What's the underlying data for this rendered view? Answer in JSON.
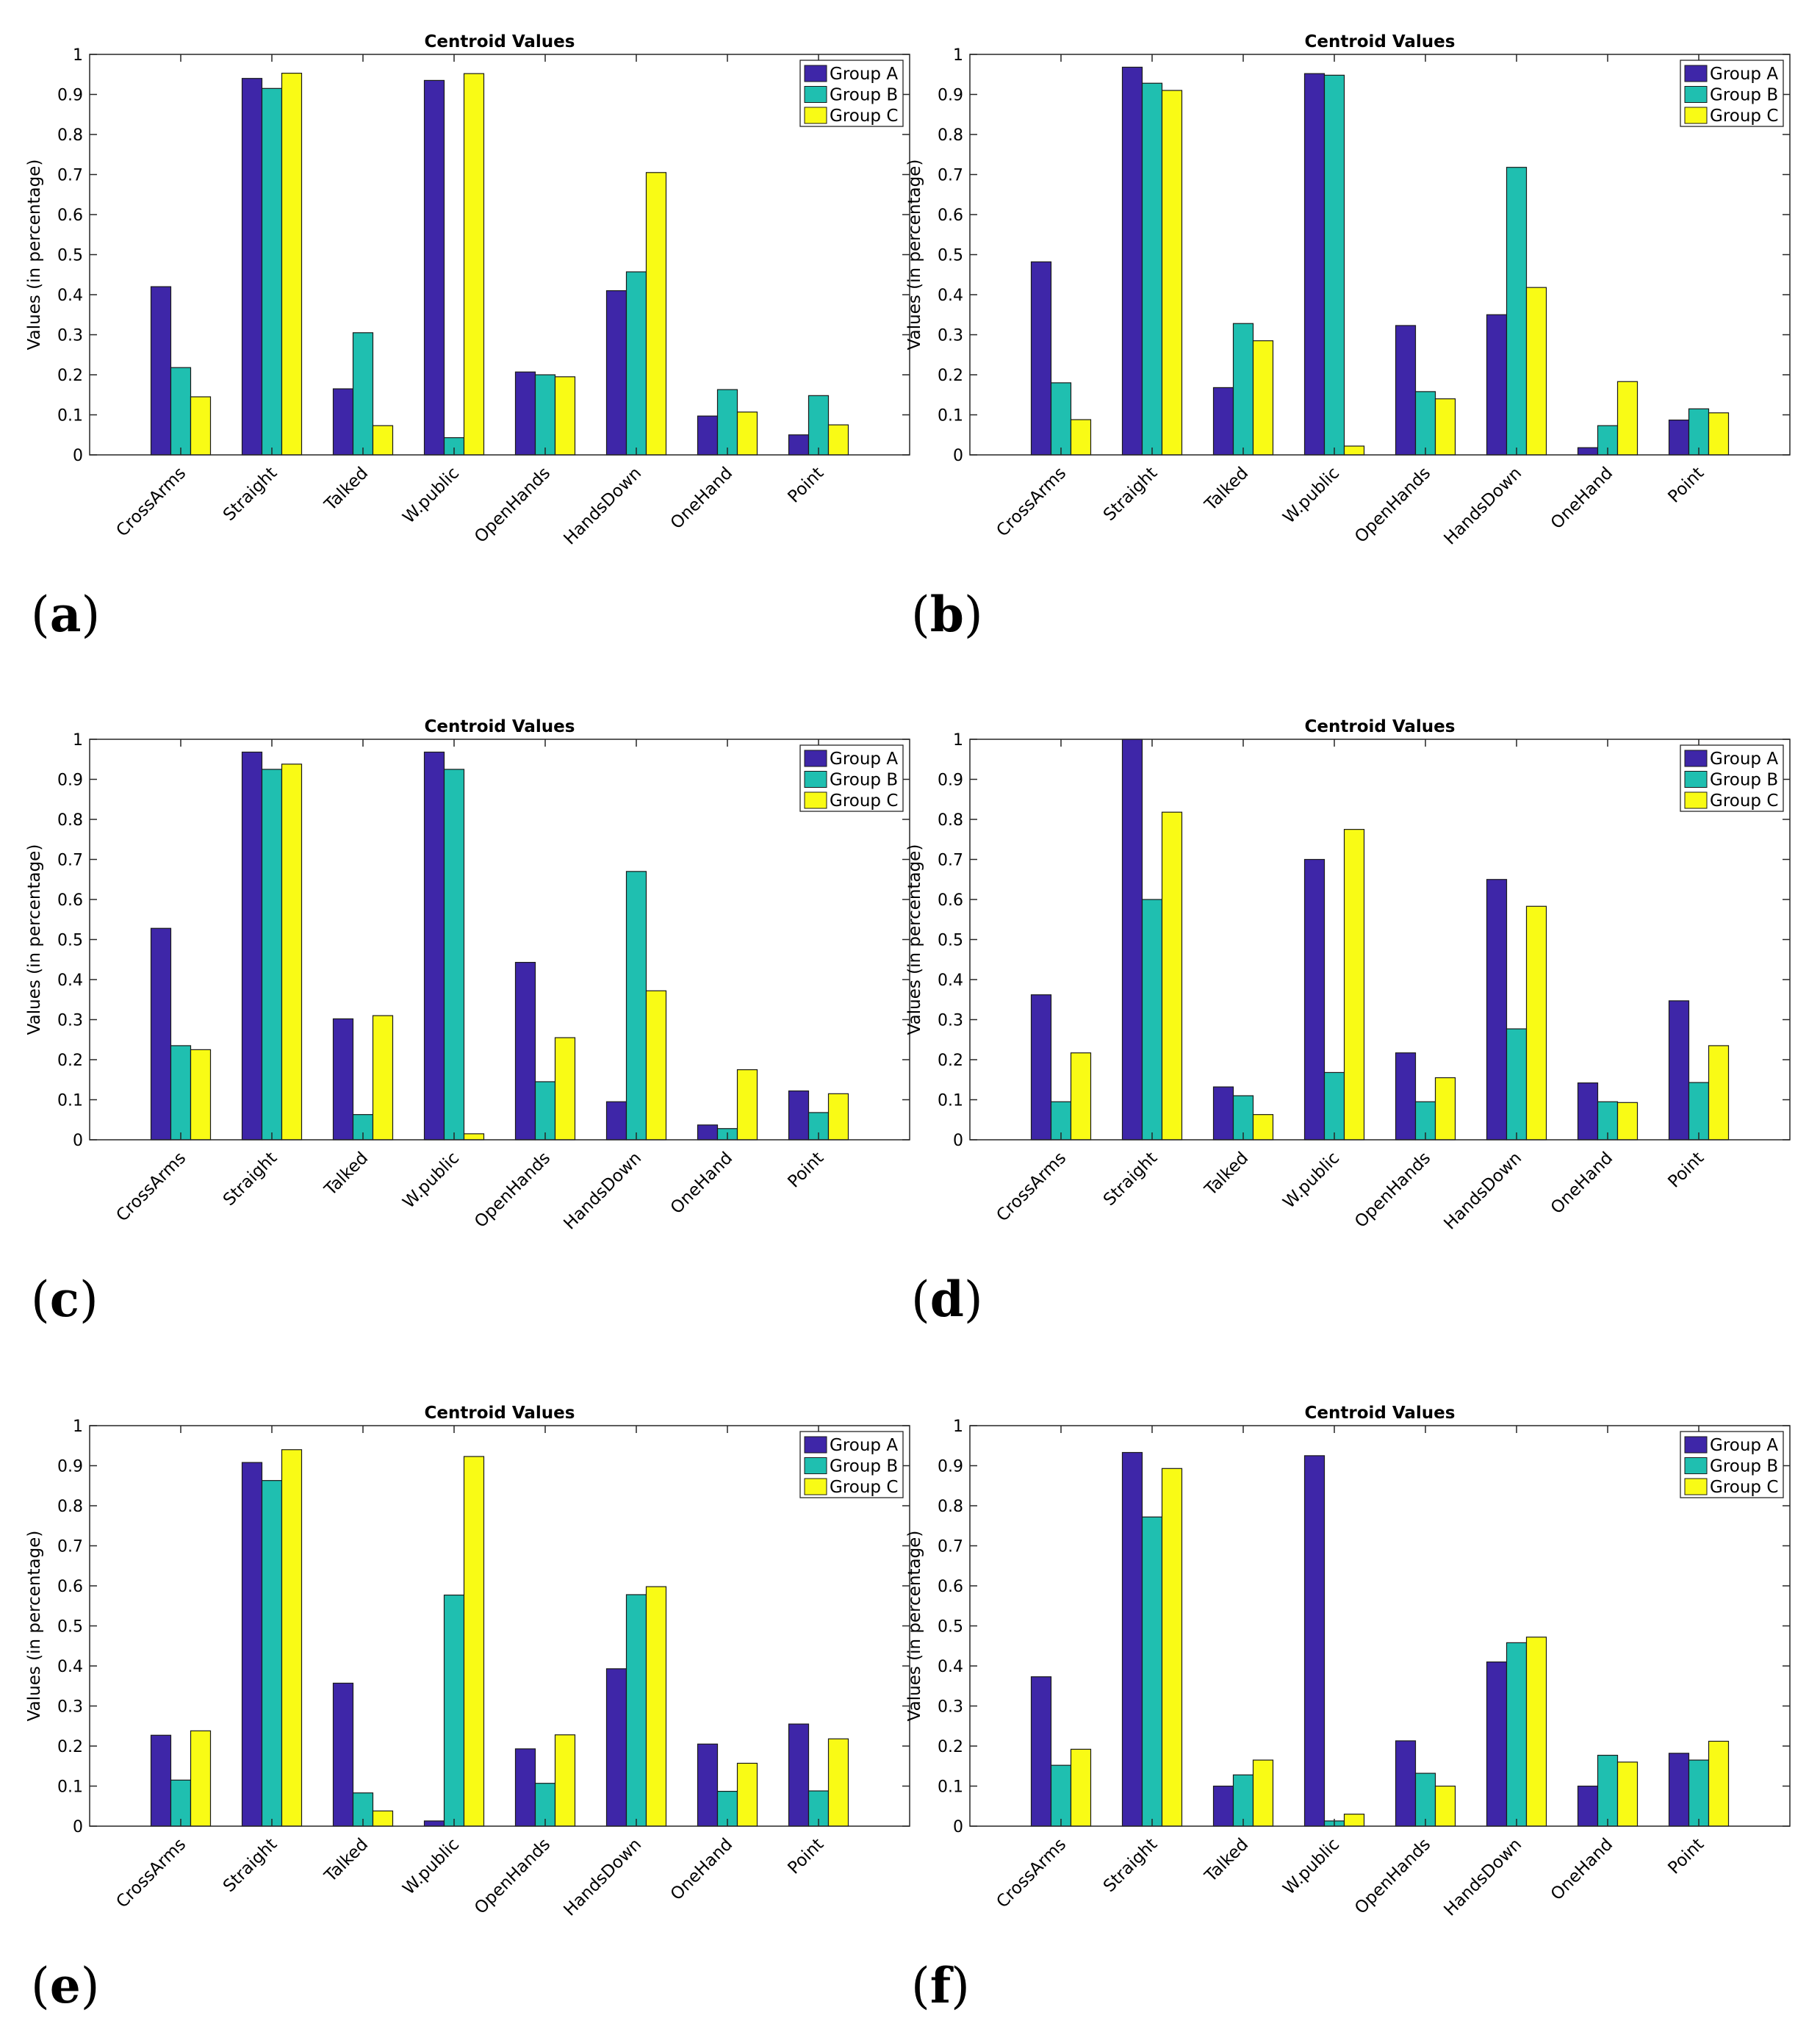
{
  "colors": {
    "group_a": "#3e26a8",
    "group_b": "#1fbfb0",
    "group_c": "#f9fb15"
  },
  "chart_data": [
    {
      "panel": "(a)",
      "type": "bar",
      "title": "Centroid Values",
      "xlabel": "",
      "ylabel": "Values (in percentage)",
      "ylim": [
        0,
        1
      ],
      "yticks": [
        "0",
        "0.1",
        "0.2",
        "0.3",
        "0.4",
        "0.5",
        "0.6",
        "0.7",
        "0.8",
        "0.9",
        "1"
      ],
      "categories": [
        "CrossArms",
        "Straight",
        "Talked",
        "W.public",
        "OpenHands",
        "HandsDown",
        "OneHand",
        "Point"
      ],
      "legend_position": "top-right",
      "series": [
        {
          "name": "Group A",
          "values": [
            0.42,
            0.94,
            0.165,
            0.935,
            0.207,
            0.41,
            0.097,
            0.05
          ]
        },
        {
          "name": "Group B",
          "values": [
            0.218,
            0.915,
            0.305,
            0.043,
            0.2,
            0.457,
            0.163,
            0.148
          ]
        },
        {
          "name": "Group C",
          "values": [
            0.145,
            0.953,
            0.073,
            0.952,
            0.195,
            0.705,
            0.107,
            0.075
          ]
        }
      ]
    },
    {
      "panel": "(b)",
      "type": "bar",
      "title": "Centroid Values",
      "xlabel": "",
      "ylabel": "Values (in percentage)",
      "ylim": [
        0,
        1
      ],
      "yticks": [
        "0",
        "0.1",
        "0.2",
        "0.3",
        "0.4",
        "0.5",
        "0.6",
        "0.7",
        "0.8",
        "0.9",
        "1"
      ],
      "categories": [
        "CrossArms",
        "Straight",
        "Talked",
        "W.public",
        "OpenHands",
        "HandsDown",
        "OneHand",
        "Point"
      ],
      "legend_position": "top-right",
      "series": [
        {
          "name": "Group A",
          "values": [
            0.482,
            0.968,
            0.168,
            0.952,
            0.323,
            0.35,
            0.018,
            0.087
          ]
        },
        {
          "name": "Group B",
          "values": [
            0.18,
            0.928,
            0.328,
            0.948,
            0.158,
            0.718,
            0.073,
            0.115
          ]
        },
        {
          "name": "Group C",
          "values": [
            0.088,
            0.91,
            0.285,
            0.022,
            0.14,
            0.418,
            0.183,
            0.105
          ]
        }
      ]
    },
    {
      "panel": "(c)",
      "type": "bar",
      "title": "Centroid Values",
      "xlabel": "",
      "ylabel": "Values (in percentage)",
      "ylim": [
        0,
        1
      ],
      "yticks": [
        "0",
        "0.1",
        "0.2",
        "0.3",
        "0.4",
        "0.5",
        "0.6",
        "0.7",
        "0.8",
        "0.9",
        "1"
      ],
      "categories": [
        "CrossArms",
        "Straight",
        "Talked",
        "W.public",
        "OpenHands",
        "HandsDown",
        "OneHand",
        "Point"
      ],
      "legend_position": "top-right",
      "series": [
        {
          "name": "Group A",
          "values": [
            0.528,
            0.968,
            0.302,
            0.968,
            0.443,
            0.095,
            0.037,
            0.122
          ]
        },
        {
          "name": "Group B",
          "values": [
            0.235,
            0.925,
            0.063,
            0.925,
            0.145,
            0.67,
            0.028,
            0.068
          ]
        },
        {
          "name": "Group C",
          "values": [
            0.225,
            0.938,
            0.31,
            0.015,
            0.255,
            0.372,
            0.175,
            0.115
          ]
        }
      ]
    },
    {
      "panel": "(d)",
      "type": "bar",
      "title": "Centroid Values",
      "xlabel": "",
      "ylabel": "Values (in percentage)",
      "ylim": [
        0,
        1
      ],
      "yticks": [
        "0",
        "0.1",
        "0.2",
        "0.3",
        "0.4",
        "0.5",
        "0.6",
        "0.7",
        "0.8",
        "0.9",
        "1"
      ],
      "categories": [
        "CrossArms",
        "Straight",
        "Talked",
        "W.public",
        "OpenHands",
        "HandsDown",
        "OneHand",
        "Point"
      ],
      "legend_position": "top-right",
      "series": [
        {
          "name": "Group A",
          "values": [
            0.362,
            1.0,
            0.132,
            0.7,
            0.217,
            0.65,
            0.142,
            0.347
          ]
        },
        {
          "name": "Group B",
          "values": [
            0.095,
            0.6,
            0.11,
            0.168,
            0.095,
            0.277,
            0.095,
            0.143
          ]
        },
        {
          "name": "Group C",
          "values": [
            0.217,
            0.818,
            0.063,
            0.775,
            0.155,
            0.583,
            0.093,
            0.235
          ]
        }
      ]
    },
    {
      "panel": "(e)",
      "type": "bar",
      "title": "Centroid Values",
      "xlabel": "",
      "ylabel": "Values (in percentage)",
      "ylim": [
        0,
        1
      ],
      "yticks": [
        "0",
        "0.1",
        "0.2",
        "0.3",
        "0.4",
        "0.5",
        "0.6",
        "0.7",
        "0.8",
        "0.9",
        "1"
      ],
      "categories": [
        "CrossArms",
        "Straight",
        "Talked",
        "W.public",
        "OpenHands",
        "HandsDown",
        "OneHand",
        "Point"
      ],
      "legend_position": "top-right",
      "series": [
        {
          "name": "Group A",
          "values": [
            0.227,
            0.908,
            0.357,
            0.013,
            0.193,
            0.393,
            0.205,
            0.255
          ]
        },
        {
          "name": "Group B",
          "values": [
            0.115,
            0.863,
            0.083,
            0.577,
            0.107,
            0.578,
            0.087,
            0.088
          ]
        },
        {
          "name": "Group C",
          "values": [
            0.238,
            0.94,
            0.038,
            0.923,
            0.228,
            0.598,
            0.157,
            0.218
          ]
        }
      ]
    },
    {
      "panel": "(f)",
      "type": "bar",
      "title": "Centroid Values",
      "xlabel": "",
      "ylabel": "Values (in percentage)",
      "ylim": [
        0,
        1
      ],
      "yticks": [
        "0",
        "0.1",
        "0.2",
        "0.3",
        "0.4",
        "0.5",
        "0.6",
        "0.7",
        "0.8",
        "0.9",
        "1"
      ],
      "categories": [
        "CrossArms",
        "Straight",
        "Talked",
        "W.public",
        "OpenHands",
        "HandsDown",
        "OneHand",
        "Point"
      ],
      "legend_position": "top-right",
      "series": [
        {
          "name": "Group A",
          "values": [
            0.373,
            0.933,
            0.1,
            0.925,
            0.213,
            0.41,
            0.1,
            0.182
          ]
        },
        {
          "name": "Group B",
          "values": [
            0.152,
            0.772,
            0.128,
            0.013,
            0.132,
            0.458,
            0.177,
            0.165
          ]
        },
        {
          "name": "Group C",
          "values": [
            0.192,
            0.893,
            0.165,
            0.03,
            0.1,
            0.472,
            0.16,
            0.212
          ]
        }
      ]
    }
  ]
}
